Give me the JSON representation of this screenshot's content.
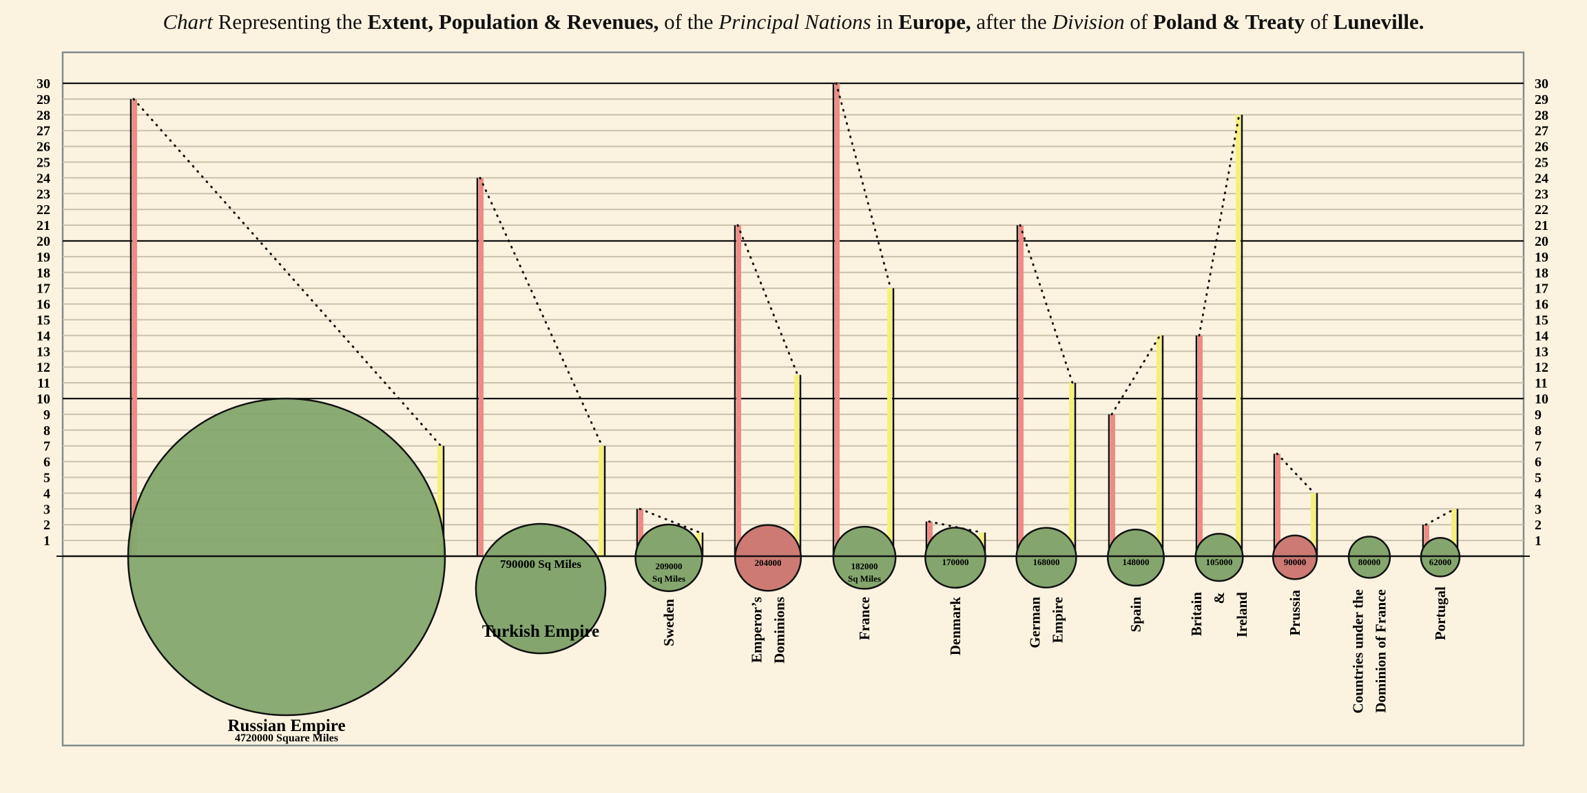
{
  "title_parts": [
    {
      "text": "Chart",
      "style": "it"
    },
    {
      "text": " Representing the ",
      "style": ""
    },
    {
      "text": "Extent, Population & Revenues,",
      "style": "b"
    },
    {
      "text": " of the ",
      "style": ""
    },
    {
      "text": "Principal Nations",
      "style": "it"
    },
    {
      "text": " in ",
      "style": ""
    },
    {
      "text": "Europe,",
      "style": "b"
    },
    {
      "text": " after the ",
      "style": ""
    },
    {
      "text": "Division",
      "style": "it"
    },
    {
      "text": " of ",
      "style": ""
    },
    {
      "text": "Poland & Treaty",
      "style": "b"
    },
    {
      "text": " of ",
      "style": ""
    },
    {
      "text": "Luneville.",
      "style": "b"
    }
  ],
  "chart_data": {
    "type": "bar",
    "ylim": [
      0,
      30
    ],
    "yticks": [
      1,
      2,
      3,
      4,
      5,
      6,
      7,
      8,
      9,
      10,
      11,
      12,
      13,
      14,
      15,
      16,
      17,
      18,
      19,
      20,
      21,
      22,
      23,
      24,
      25,
      26,
      27,
      28,
      29,
      30
    ],
    "grid": true,
    "colors": {
      "background": "#fbf3e0",
      "population": "#f08a84",
      "revenue": "#f5f07a",
      "extent_circle": "#84a66e",
      "highlight_circle": "#cd7a74",
      "gridline": "#c9c1ac",
      "frame": "#7f8c8c"
    },
    "nations": [
      {
        "name": [
          "Russian Empire"
        ],
        "area_label": "4720000  Square Miles",
        "area": 4720000,
        "population": 29,
        "revenue": 7,
        "circle_color": "green"
      },
      {
        "name": [
          "Turkish Empire"
        ],
        "area_label": "790000  Sq Miles",
        "area": 790000,
        "population": 24,
        "revenue": 7,
        "circle_color": "green"
      },
      {
        "name": [
          "Sweden"
        ],
        "area_label": "209000",
        "area_sub": "Sq Miles",
        "area": 209000,
        "population": 3,
        "revenue": 1.5,
        "circle_color": "green"
      },
      {
        "name": [
          "Emperor’s",
          "Dominions"
        ],
        "area_label": "204000",
        "area": 204000,
        "population": 21,
        "revenue": 11.5,
        "circle_color": "red"
      },
      {
        "name": [
          "France"
        ],
        "area_label": "182000",
        "area_sub": "Sq Miles",
        "area": 182000,
        "population": 30,
        "revenue": 17,
        "circle_color": "green"
      },
      {
        "name": [
          "Denmark"
        ],
        "area_label": "170000",
        "area": 170000,
        "population": 2.2,
        "revenue": 1.5,
        "circle_color": "green"
      },
      {
        "name": [
          "German",
          "Empire"
        ],
        "area_label": "168000",
        "area": 168000,
        "population": 21,
        "revenue": 11,
        "circle_color": "green"
      },
      {
        "name": [
          "Spain"
        ],
        "area_label": "148000",
        "area": 148000,
        "population": 9,
        "revenue": 14,
        "circle_color": "green"
      },
      {
        "name": [
          "Britain",
          "&",
          "Ireland"
        ],
        "area_label": "105000",
        "area": 105000,
        "population": 14,
        "revenue": 28,
        "circle_color": "green"
      },
      {
        "name": [
          "Prussia"
        ],
        "area_label": "90000",
        "area": 90000,
        "population": 6.5,
        "revenue": 4,
        "circle_color": "red"
      },
      {
        "name": [
          "Countries under the",
          "Dominion of France"
        ],
        "area_label": "80000",
        "area": 80000,
        "population": null,
        "revenue": null,
        "circle_color": "green"
      },
      {
        "name": [
          "Portugal"
        ],
        "area_label": "62000",
        "area": 62000,
        "population": 2,
        "revenue": 3,
        "circle_color": "green"
      }
    ]
  }
}
